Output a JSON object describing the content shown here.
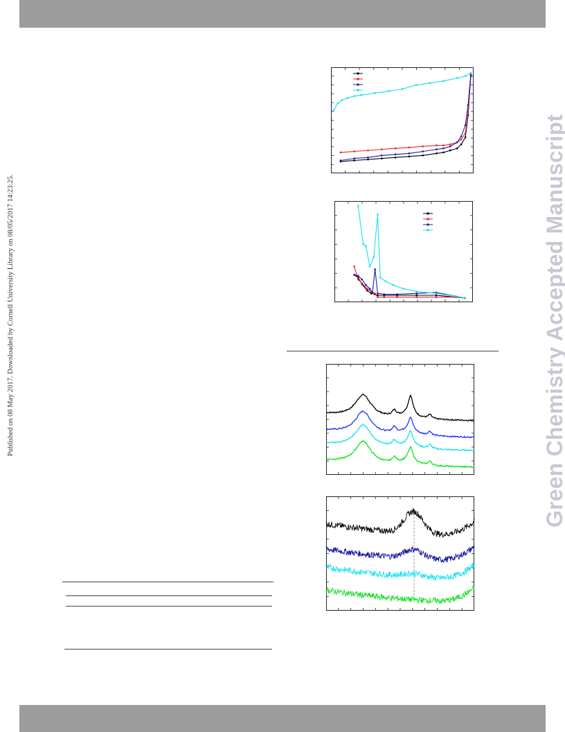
{
  "page": {
    "side_stamp": "Published on 08 May 2017. Downloaded by Cornell University Library on 08/05/2017 14:23:25.",
    "watermark": "Green Chemistry Accepted Manuscript"
  },
  "colors": {
    "black": "#000000",
    "red": "#e8202a",
    "blue": "#1a1aa8",
    "cyan": "#16e0f0",
    "green": "#12e020",
    "bright_blue": "#2233ff",
    "dark_blue": "#10109a"
  },
  "chart_data": [
    {
      "type": "line",
      "id": "adsorption-isotherm",
      "xlim": [
        0,
        1
      ],
      "ylim": [
        0,
        1
      ],
      "legend_position": "top-left",
      "series": [
        {
          "color": "black",
          "x": [
            0.05,
            0.15,
            0.25,
            0.35,
            0.45,
            0.55,
            0.65,
            0.75,
            0.8,
            0.85,
            0.9,
            0.93,
            0.96,
            0.98,
            1.0
          ],
          "y": [
            0.09,
            0.1,
            0.11,
            0.12,
            0.13,
            0.14,
            0.15,
            0.17,
            0.18,
            0.2,
            0.22,
            0.26,
            0.33,
            0.55,
            0.94
          ]
        },
        {
          "color": "red",
          "x": [
            0.05,
            0.15,
            0.25,
            0.35,
            0.45,
            0.55,
            0.65,
            0.75,
            0.8,
            0.85,
            0.9,
            0.93,
            0.96,
            0.98,
            1.0
          ],
          "y": [
            0.18,
            0.19,
            0.2,
            0.21,
            0.22,
            0.23,
            0.24,
            0.25,
            0.25,
            0.26,
            0.28,
            0.31,
            0.37,
            0.58,
            0.95
          ]
        },
        {
          "color": "blue",
          "x": [
            0.05,
            0.15,
            0.25,
            0.35,
            0.45,
            0.55,
            0.65,
            0.75,
            0.8,
            0.85,
            0.9,
            0.93,
            0.96,
            0.98,
            1.0
          ],
          "y": [
            0.1,
            0.12,
            0.13,
            0.15,
            0.16,
            0.17,
            0.19,
            0.21,
            0.22,
            0.24,
            0.28,
            0.34,
            0.45,
            0.65,
            0.96
          ]
        },
        {
          "color": "cyan",
          "x": [
            0.0,
            0.03,
            0.06,
            0.1,
            0.15,
            0.2,
            0.3,
            0.4,
            0.5,
            0.6,
            0.7,
            0.8,
            0.9,
            0.96,
            1.0
          ],
          "y": [
            0.6,
            0.67,
            0.7,
            0.72,
            0.74,
            0.75,
            0.77,
            0.79,
            0.81,
            0.85,
            0.87,
            0.89,
            0.92,
            0.94,
            0.97
          ]
        }
      ]
    },
    {
      "type": "line",
      "id": "pore-size-distribution",
      "xlim": [
        0,
        1
      ],
      "ylim": [
        0,
        1
      ],
      "legend_position": "top-right",
      "series": [
        {
          "color": "black",
          "x": [
            0.12,
            0.15,
            0.18,
            0.22,
            0.25,
            0.28,
            0.3,
            0.35,
            0.45,
            0.6,
            0.75,
            0.9,
            0.97
          ],
          "y": [
            0.25,
            0.22,
            0.15,
            0.08,
            0.05,
            0.04,
            0.03,
            0.03,
            0.03,
            0.03,
            0.03,
            0.01,
            0.0
          ]
        },
        {
          "color": "red",
          "x": [
            0.12,
            0.15,
            0.18,
            0.22,
            0.25,
            0.28,
            0.3,
            0.35,
            0.45,
            0.6,
            0.75,
            0.9,
            0.97
          ],
          "y": [
            0.34,
            0.2,
            0.16,
            0.1,
            0.07,
            0.05,
            0.01,
            0.01,
            0.01,
            0.01,
            0.01,
            0.01,
            0.0
          ]
        },
        {
          "color": "blue",
          "x": [
            0.12,
            0.15,
            0.18,
            0.21,
            0.24,
            0.26,
            0.28,
            0.3,
            0.35,
            0.45,
            0.6,
            0.75,
            0.9,
            0.97
          ],
          "y": [
            0.25,
            0.24,
            0.2,
            0.14,
            0.1,
            0.06,
            0.31,
            0.05,
            0.04,
            0.04,
            0.05,
            0.06,
            0.02,
            0.0
          ]
        },
        {
          "color": "cyan",
          "x": [
            0.15,
            0.19,
            0.21,
            0.24,
            0.27,
            0.3,
            0.32,
            0.36,
            0.42,
            0.5,
            0.6,
            0.75,
            0.9,
            0.97
          ],
          "y": [
            0.99,
            0.58,
            0.56,
            0.34,
            0.44,
            0.9,
            0.22,
            0.18,
            0.14,
            0.1,
            0.07,
            0.05,
            0.02,
            0.0
          ]
        }
      ]
    },
    {
      "type": "line",
      "id": "xrd-patterns",
      "xlim": [
        0,
        1
      ],
      "ylim": [
        0,
        1
      ],
      "series": [
        {
          "color": "black",
          "offset": 0.44
        },
        {
          "color": "bright_blue",
          "offset": 0.29
        },
        {
          "color": "cyan",
          "offset": 0.17
        },
        {
          "color": "green",
          "offset": 0.02
        }
      ]
    },
    {
      "type": "line",
      "id": "raman-spectra",
      "xlim": [
        0,
        1
      ],
      "ylim": [
        0,
        1
      ],
      "series": [
        {
          "color": "black",
          "offset": 0.66
        },
        {
          "color": "dark_blue",
          "offset": 0.44
        },
        {
          "color": "cyan",
          "offset": 0.28
        },
        {
          "color": "green",
          "offset": 0.08
        }
      ]
    }
  ]
}
